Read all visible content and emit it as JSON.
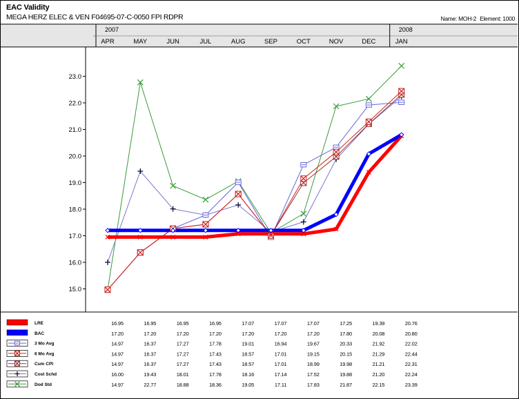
{
  "header": {
    "title": "EAC Validity",
    "subtitle": "MEGA HERZ ELEC & VEN F04695-07-C-0050 FPI RDPR",
    "name_label": "Name: MOH-2",
    "element_label": "Element: 1000"
  },
  "chart_data": {
    "type": "line",
    "years": [
      {
        "label": "2007",
        "start_index": 0
      },
      {
        "label": "2008",
        "start_index": 9
      }
    ],
    "categories": [
      "APR",
      "MAY",
      "JUN",
      "JUL",
      "AUG",
      "SEP",
      "OCT",
      "NOV",
      "DEC",
      "JAN"
    ],
    "ylim": [
      14.0,
      24.0
    ],
    "yticks": [
      "15.0",
      "16.0",
      "17.0",
      "18.0",
      "19.0",
      "20.0",
      "21.0",
      "22.0",
      "23.0"
    ],
    "grid": false,
    "legend_placement": "table-bottom",
    "series": [
      {
        "name": "LRE",
        "color": "#ff0000",
        "width": 5,
        "marker": "x",
        "values": [
          16.95,
          16.95,
          16.95,
          16.95,
          17.07,
          17.07,
          17.07,
          17.25,
          19.39,
          20.76
        ]
      },
      {
        "name": "BAC",
        "color": "#0000ff",
        "width": 5,
        "marker": "diamond",
        "values": [
          17.2,
          17.2,
          17.2,
          17.2,
          17.2,
          17.2,
          17.2,
          17.8,
          20.08,
          20.8
        ]
      },
      {
        "name": "3 Mo Avg",
        "color": "#6666dd",
        "width": 1,
        "marker": "square",
        "values": [
          14.97,
          16.37,
          17.27,
          17.78,
          19.01,
          16.94,
          19.67,
          20.33,
          21.92,
          22.02
        ]
      },
      {
        "name": "6 Mo Avg",
        "color": "#cc2222",
        "width": 1,
        "marker": "squarex",
        "values": [
          14.97,
          16.37,
          17.27,
          17.43,
          18.57,
          17.01,
          19.15,
          20.15,
          21.29,
          22.44
        ]
      },
      {
        "name": "Cum CPI",
        "color": "#993333",
        "width": 1,
        "marker": "squarex",
        "values": [
          14.97,
          16.37,
          17.27,
          17.43,
          18.57,
          17.01,
          18.99,
          19.98,
          21.21,
          22.31
        ]
      },
      {
        "name": "Cost Schd",
        "color": "#7777cc",
        "width": 1,
        "marker": "plus",
        "values": [
          16.0,
          19.43,
          18.01,
          17.78,
          18.16,
          17.14,
          17.52,
          19.88,
          21.2,
          22.24
        ]
      },
      {
        "name": "Dod Std",
        "color": "#3a9a3a",
        "width": 1,
        "marker": "x",
        "values": [
          14.97,
          22.77,
          18.88,
          18.36,
          19.05,
          17.11,
          17.83,
          21.87,
          22.15,
          23.39
        ]
      }
    ],
    "table_values": [
      [
        "16.95",
        "16.95",
        "16.95",
        "16.95",
        "17.07",
        "17.07",
        "17.07",
        "17.25",
        "19.39",
        "20.76"
      ],
      [
        "17.20",
        "17.20",
        "17.20",
        "17.20",
        "17.20",
        "17.20",
        "17.20",
        "17.80",
        "20.08",
        "20.80"
      ],
      [
        "14.97",
        "16.37",
        "17.27",
        "17.78",
        "19.01",
        "16.94",
        "19.67",
        "20.33",
        "21.92",
        "22.02"
      ],
      [
        "14.97",
        "16.37",
        "17.27",
        "17.43",
        "18.57",
        "17.01",
        "19.15",
        "20.15",
        "21.29",
        "22.44"
      ],
      [
        "14.97",
        "16.37",
        "17.27",
        "17.43",
        "18.57",
        "17.01",
        "18.99",
        "19.98",
        "21.21",
        "22.31"
      ],
      [
        "16.00",
        "19.43",
        "18.01",
        "17.78",
        "18.16",
        "17.14",
        "17.52",
        "19.88",
        "21.20",
        "22.24"
      ],
      [
        "14.97",
        "22.77",
        "18.88",
        "18.36",
        "19.05",
        "17.11",
        "17.83",
        "21.87",
        "22.15",
        "23.39"
      ]
    ]
  }
}
